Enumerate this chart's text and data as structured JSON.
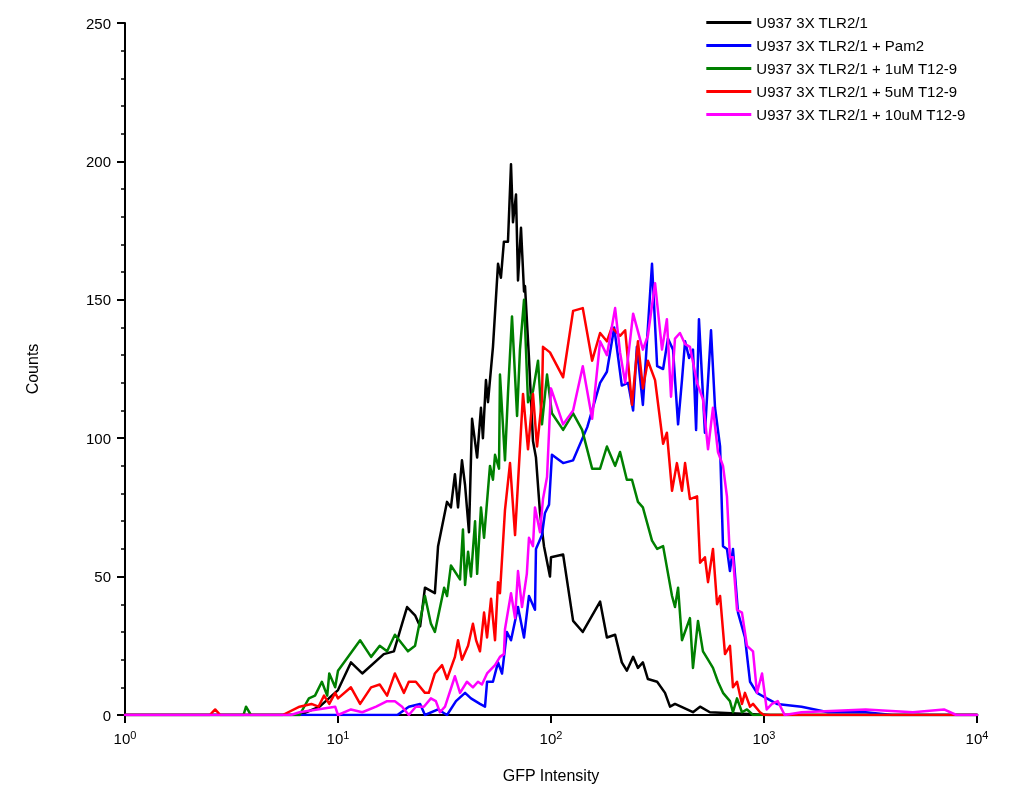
{
  "chart_data": {
    "type": "line",
    "xlabel": "GFP Intensity",
    "ylabel": "Counts",
    "log": "x",
    "grid": false,
    "legend": "top right",
    "marker": "none",
    "line_style": "solid",
    "xlim": [
      1,
      10000
    ],
    "xticks": [
      {
        "value": 1,
        "label": "10$^{0}$"
      },
      {
        "value": 10,
        "label": "10$^{1}$"
      },
      {
        "value": 100,
        "label": "10$^{2}$"
      },
      {
        "value": 1000,
        "label": "10$^{3}$"
      },
      {
        "value": 10000,
        "label": "10$^{4}$"
      }
    ],
    "ylim": [
      0,
      250
    ],
    "yticks": [
      0,
      50,
      100,
      150,
      200,
      250
    ],
    "series": [
      {
        "name": "U937 3X TLR2/1",
        "color": "#000000",
        "x": [
          1,
          6.6,
          8.2,
          10,
          11.5,
          13,
          16.4,
          18.3,
          20,
          21.1,
          23,
          24.3,
          25.6,
          28.5,
          29.5,
          32.5,
          33.9,
          35.4,
          36.6,
          38.2,
          39.5,
          41.2,
          42.6,
          45,
          46.9,
          47.9,
          49.5,
          50.6,
          53.4,
          56.4,
          58.2,
          60.1,
          62.8,
          64.9,
          66.3,
          68.5,
          70,
          72.3,
          74.7,
          75.5,
          78.8,
          82.3,
          85,
          88.8,
          92.7,
          98.9,
          100,
          114,
          127,
          141,
          170,
          183,
          200,
          215,
          227,
          243,
          256,
          270,
          285,
          315,
          343,
          362,
          382,
          435,
          464,
          501,
          557,
          1070,
          10000
        ],
        "values": [
          0,
          0,
          3,
          9,
          19,
          15,
          22,
          23,
          33,
          39,
          36,
          32,
          46,
          44,
          61,
          77,
          75,
          87,
          75,
          92,
          83,
          66,
          107,
          93,
          111,
          100,
          121,
          113,
          133,
          163,
          158,
          171,
          171,
          199,
          178,
          188,
          157,
          176,
          153,
          155,
          129,
          99,
          93,
          73,
          61,
          50,
          57,
          58,
          34,
          30,
          41,
          28,
          29,
          19,
          16,
          21,
          17,
          19,
          13,
          12,
          8,
          3,
          4,
          2,
          1,
          3,
          1,
          0,
          0
        ]
      },
      {
        "name": "U937 3X TLR2/1 + Pam2",
        "color": "#0000ff",
        "x": [
          1,
          19,
          21.5,
          24.3,
          25.6,
          29.5,
          32.5,
          35.8,
          39.5,
          42.1,
          46.4,
          49,
          50.1,
          53.4,
          56.4,
          58.9,
          62.1,
          64.9,
          70,
          74.7,
          78.8,
          84.1,
          85,
          90.7,
          93.7,
          97.9,
          101,
          114,
          127,
          148,
          170,
          183,
          198,
          215,
          230,
          243,
          253,
          270,
          298,
          315,
          336,
          354,
          374,
          395,
          412,
          426,
          445,
          464,
          480,
          495,
          528,
          564,
          589,
          622,
          642,
          670,
          692,
          715,
          755,
          814,
          860,
          927,
          1030,
          1150,
          1500,
          2000,
          3000,
          4000,
          10000
        ],
        "values": [
          0,
          0,
          3,
          4,
          0,
          2,
          0,
          5,
          8,
          6,
          4,
          3,
          12,
          12,
          19,
          15,
          30,
          27,
          39,
          28,
          43,
          38,
          60,
          65,
          73,
          76,
          94,
          91,
          92,
          104,
          120,
          124,
          140,
          119,
          120,
          110,
          133,
          112,
          163,
          126,
          125,
          136,
          132,
          105,
          121,
          135,
          129,
          132,
          103,
          143,
          102,
          139,
          111,
          97,
          61,
          60,
          52,
          60,
          37,
          28,
          12,
          8,
          6,
          4,
          3,
          1,
          1,
          0,
          0
        ]
      },
      {
        "name": "U937 3X TLR2/1 + 1uM T12-9",
        "color": "#008000",
        "x": [
          1,
          3.6,
          3.7,
          3.9,
          6.6,
          7.3,
          7.8,
          8.4,
          8.9,
          9.1,
          9.7,
          10,
          12.7,
          14.3,
          15.7,
          17,
          18.5,
          21.3,
          23,
          25.6,
          27.3,
          28.5,
          31.5,
          32.5,
          33.9,
          37.4,
          38.6,
          39.5,
          40.8,
          42.1,
          44,
          45,
          46.9,
          48.5,
          51.7,
          53.4,
          54.6,
          57,
          57.6,
          60.8,
          62.8,
          65.6,
          69.3,
          71.5,
          74.7,
          78,
          82.3,
          86.9,
          90.7,
          95.8,
          101,
          114,
          127,
          140,
          156,
          170,
          183,
          200,
          211,
          227,
          240,
          256,
          270,
          298,
          315,
          336,
          370,
          382,
          395,
          412,
          449,
          464,
          490,
          517,
          546,
          576,
          608,
          642,
          692,
          715,
          747,
          788,
          832,
          888,
          10000
        ],
        "values": [
          0,
          0,
          3,
          0,
          0,
          6,
          7,
          12,
          7,
          15,
          10,
          16,
          27,
          21,
          25,
          23,
          29,
          23,
          25,
          43,
          33,
          30,
          46,
          43,
          54,
          49,
          67,
          47,
          59,
          50,
          70,
          51,
          75,
          64,
          90,
          85,
          94,
          89,
          123,
          92,
          116,
          144,
          108,
          132,
          150,
          113,
          117,
          128,
          105,
          123,
          109,
          103,
          109,
          103,
          89,
          89,
          97,
          90,
          95,
          85,
          85,
          77,
          75,
          63,
          60,
          61,
          43,
          39,
          46,
          27,
          35,
          17,
          34,
          23,
          20,
          17,
          12,
          8,
          5,
          1,
          6,
          1,
          2,
          0,
          0
        ]
      },
      {
        "name": "U937 3X TLR2/1 + 5uM T12-9",
        "color": "#ff0000",
        "x": [
          1,
          2.5,
          2.65,
          2.8,
          5.5,
          6.6,
          7.5,
          8.1,
          8.6,
          9.1,
          9.7,
          10,
          11.5,
          12.7,
          14.3,
          15.7,
          17,
          18.5,
          20.4,
          21.5,
          23.2,
          25.6,
          26.7,
          28.5,
          30.8,
          32.5,
          35.4,
          36.6,
          38.2,
          40.8,
          43,
          44.5,
          46.4,
          48.5,
          50.1,
          52.3,
          54.6,
          56.4,
          57.6,
          60.8,
          64.2,
          67.8,
          73.9,
          78,
          82.3,
          86,
          90.7,
          91.7,
          98.9,
          114,
          127,
          141,
          156,
          170,
          183,
          193,
          211,
          223,
          240,
          256,
          270,
          285,
          308,
          336,
          350,
          370,
          390,
          412,
          426,
          449,
          485,
          501,
          528,
          546,
          576,
          602,
          622,
          656,
          692,
          715,
          747,
          788,
          814,
          860,
          888,
          958,
          1000,
          10000
        ],
        "values": [
          0,
          0,
          2,
          0,
          0,
          3,
          4,
          3,
          7,
          4,
          8,
          6,
          10,
          4,
          10,
          11,
          7,
          15,
          8,
          12,
          12,
          8,
          8,
          15,
          18,
          13,
          21,
          27,
          20,
          25,
          33,
          27,
          23,
          37,
          28,
          42,
          27,
          48,
          44,
          74,
          91,
          65,
          116,
          96,
          116,
          97,
          114,
          133,
          131,
          122,
          146,
          147,
          128,
          138,
          135,
          140,
          137,
          139,
          112,
          135,
          118,
          128,
          121,
          98,
          102,
          81,
          91,
          81,
          91,
          78,
          79,
          55,
          57,
          48,
          60,
          40,
          43,
          22,
          25,
          10,
          12,
          4,
          8,
          3,
          4,
          1,
          0,
          0
        ]
      },
      {
        "name": "U937 3X TLR2/1 + 10uM T12-9",
        "color": "#ff00ff",
        "x": [
          1,
          6,
          6.6,
          9.7,
          10,
          11.5,
          13,
          15.1,
          17,
          18.5,
          20,
          21.5,
          23.2,
          25.3,
          27.3,
          28.8,
          30.1,
          31.8,
          35.4,
          37.4,
          40.3,
          43,
          45.4,
          47.4,
          50.1,
          54.6,
          57.6,
          60.1,
          60.8,
          64.9,
          67.8,
          70,
          73.1,
          77,
          78.8,
          82.3,
          84.1,
          88.8,
          91.7,
          95.8,
          100,
          114,
          127,
          141,
          156,
          170,
          183,
          200,
          211,
          223,
          243,
          270,
          285,
          308,
          332,
          350,
          366,
          382,
          403,
          426,
          449,
          485,
          517,
          546,
          576,
          608,
          642,
          670,
          692,
          715,
          747,
          788,
          832,
          888,
          927,
          979,
          1030,
          1090,
          1160,
          1250,
          1500,
          3000,
          5000,
          7000,
          8000,
          10000
        ],
        "values": [
          0,
          0,
          1,
          3,
          0,
          2,
          1,
          3,
          5,
          5,
          3,
          0,
          3,
          3,
          6,
          5,
          1,
          3,
          14,
          8,
          12,
          10,
          12,
          11,
          15,
          18,
          21,
          22,
          31,
          44,
          35,
          52,
          39,
          51,
          64,
          61,
          75,
          66,
          78,
          86,
          118,
          105,
          110,
          126,
          107,
          135,
          130,
          147,
          131,
          120,
          145,
          132,
          137,
          156,
          132,
          143,
          115,
          136,
          138,
          134,
          133,
          120,
          114,
          96,
          111,
          95,
          90,
          79,
          57,
          57,
          38,
          37,
          25,
          23,
          8,
          15,
          2,
          4,
          5,
          0,
          1,
          2,
          1,
          2,
          0,
          0
        ]
      }
    ]
  }
}
